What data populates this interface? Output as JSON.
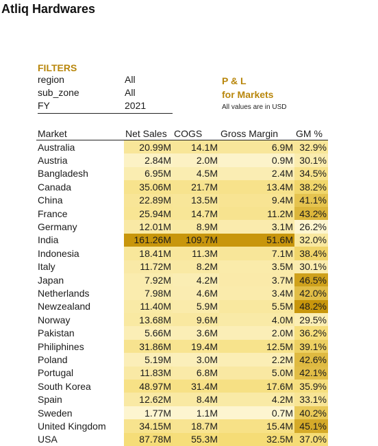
{
  "title": "Atliq Hardwares",
  "filters": {
    "heading": "FILTERS",
    "rows": [
      {
        "key": "region",
        "value": "All"
      },
      {
        "key": "sub_zone",
        "value": "All"
      },
      {
        "key": "FY",
        "value": "2021"
      }
    ]
  },
  "pl": {
    "line1": "P & L",
    "line2": "for Markets",
    "note": "All values are in USD"
  },
  "table": {
    "headers": [
      "Market",
      "Net Sales",
      "COGS",
      "Gross Margin",
      "GM %"
    ],
    "rows": [
      {
        "market": "Australia",
        "net_sales": "20.99M",
        "cogs": "14.1M",
        "gross_margin": "6.9M",
        "gm_pct": "32.9%",
        "ns": 20.99,
        "cg": 14.1,
        "gm": 6.9,
        "pct": 32.9
      },
      {
        "market": "Austria",
        "net_sales": "2.84M",
        "cogs": "2.0M",
        "gross_margin": "0.9M",
        "gm_pct": "30.1%",
        "ns": 2.84,
        "cg": 2.0,
        "gm": 0.9,
        "pct": 30.1
      },
      {
        "market": "Bangladesh",
        "net_sales": "6.95M",
        "cogs": "4.5M",
        "gross_margin": "2.4M",
        "gm_pct": "34.5%",
        "ns": 6.95,
        "cg": 4.5,
        "gm": 2.4,
        "pct": 34.5
      },
      {
        "market": "Canada",
        "net_sales": "35.06M",
        "cogs": "21.7M",
        "gross_margin": "13.4M",
        "gm_pct": "38.2%",
        "ns": 35.06,
        "cg": 21.7,
        "gm": 13.4,
        "pct": 38.2
      },
      {
        "market": "China",
        "net_sales": "22.89M",
        "cogs": "13.5M",
        "gross_margin": "9.4M",
        "gm_pct": "41.1%",
        "ns": 22.89,
        "cg": 13.5,
        "gm": 9.4,
        "pct": 41.1
      },
      {
        "market": "France",
        "net_sales": "25.94M",
        "cogs": "14.7M",
        "gross_margin": "11.2M",
        "gm_pct": "43.2%",
        "ns": 25.94,
        "cg": 14.7,
        "gm": 11.2,
        "pct": 43.2
      },
      {
        "market": "Germany",
        "net_sales": "12.01M",
        "cogs": "8.9M",
        "gross_margin": "3.1M",
        "gm_pct": "26.2%",
        "ns": 12.01,
        "cg": 8.9,
        "gm": 3.1,
        "pct": 26.2
      },
      {
        "market": "India",
        "net_sales": "161.26M",
        "cogs": "109.7M",
        "gross_margin": "51.6M",
        "gm_pct": "32.0%",
        "ns": 161.26,
        "cg": 109.7,
        "gm": 51.6,
        "pct": 32.0
      },
      {
        "market": "Indonesia",
        "net_sales": "18.41M",
        "cogs": "11.3M",
        "gross_margin": "7.1M",
        "gm_pct": "38.4%",
        "ns": 18.41,
        "cg": 11.3,
        "gm": 7.1,
        "pct": 38.4
      },
      {
        "market": "Italy",
        "net_sales": "11.72M",
        "cogs": "8.2M",
        "gross_margin": "3.5M",
        "gm_pct": "30.1%",
        "ns": 11.72,
        "cg": 8.2,
        "gm": 3.5,
        "pct": 30.1
      },
      {
        "market": "Japan",
        "net_sales": "7.92M",
        "cogs": "4.2M",
        "gross_margin": "3.7M",
        "gm_pct": "46.5%",
        "ns": 7.92,
        "cg": 4.2,
        "gm": 3.7,
        "pct": 46.5
      },
      {
        "market": "Netherlands",
        "net_sales": "7.98M",
        "cogs": "4.6M",
        "gross_margin": "3.4M",
        "gm_pct": "42.0%",
        "ns": 7.98,
        "cg": 4.6,
        "gm": 3.4,
        "pct": 42.0
      },
      {
        "market": "Newzealand",
        "net_sales": "11.40M",
        "cogs": "5.9M",
        "gross_margin": "5.5M",
        "gm_pct": "48.2%",
        "ns": 11.4,
        "cg": 5.9,
        "gm": 5.5,
        "pct": 48.2
      },
      {
        "market": "Norway",
        "net_sales": "13.68M",
        "cogs": "9.6M",
        "gross_margin": "4.0M",
        "gm_pct": "29.5%",
        "ns": 13.68,
        "cg": 9.6,
        "gm": 4.0,
        "pct": 29.5
      },
      {
        "market": "Pakistan",
        "net_sales": "5.66M",
        "cogs": "3.6M",
        "gross_margin": "2.0M",
        "gm_pct": "36.2%",
        "ns": 5.66,
        "cg": 3.6,
        "gm": 2.0,
        "pct": 36.2
      },
      {
        "market": "Philiphines",
        "net_sales": "31.86M",
        "cogs": "19.4M",
        "gross_margin": "12.5M",
        "gm_pct": "39.1%",
        "ns": 31.86,
        "cg": 19.4,
        "gm": 12.5,
        "pct": 39.1
      },
      {
        "market": "Poland",
        "net_sales": "5.19M",
        "cogs": "3.0M",
        "gross_margin": "2.2M",
        "gm_pct": "42.6%",
        "ns": 5.19,
        "cg": 3.0,
        "gm": 2.2,
        "pct": 42.6
      },
      {
        "market": "Portugal",
        "net_sales": "11.83M",
        "cogs": "6.8M",
        "gross_margin": "5.0M",
        "gm_pct": "42.1%",
        "ns": 11.83,
        "cg": 6.8,
        "gm": 5.0,
        "pct": 42.1
      },
      {
        "market": "South Korea",
        "net_sales": "48.97M",
        "cogs": "31.4M",
        "gross_margin": "17.6M",
        "gm_pct": "35.9%",
        "ns": 48.97,
        "cg": 31.4,
        "gm": 17.6,
        "pct": 35.9
      },
      {
        "market": "Spain",
        "net_sales": "12.62M",
        "cogs": "8.4M",
        "gross_margin": "4.2M",
        "gm_pct": "33.1%",
        "ns": 12.62,
        "cg": 8.4,
        "gm": 4.2,
        "pct": 33.1
      },
      {
        "market": "Sweden",
        "net_sales": "1.77M",
        "cogs": "1.1M",
        "gross_margin": "0.7M",
        "gm_pct": "40.2%",
        "ns": 1.77,
        "cg": 1.1,
        "gm": 0.7,
        "pct": 40.2
      },
      {
        "market": "United Kingdom",
        "net_sales": "34.15M",
        "cogs": "18.7M",
        "gross_margin": "15.4M",
        "gm_pct": "45.1%",
        "ns": 34.15,
        "cg": 18.7,
        "gm": 15.4,
        "pct": 45.1
      },
      {
        "market": "USA",
        "net_sales": "87.78M",
        "cogs": "55.3M",
        "gross_margin": "32.5M",
        "gm_pct": "37.0%",
        "ns": 87.78,
        "cg": 55.3,
        "gm": 32.5,
        "pct": 37.0
      }
    ]
  },
  "colors": {
    "accent": "#b8860b",
    "scale_low": "#fdf5d0",
    "scale_mid": "#f5dc74",
    "scale_high": "#c8960c"
  }
}
